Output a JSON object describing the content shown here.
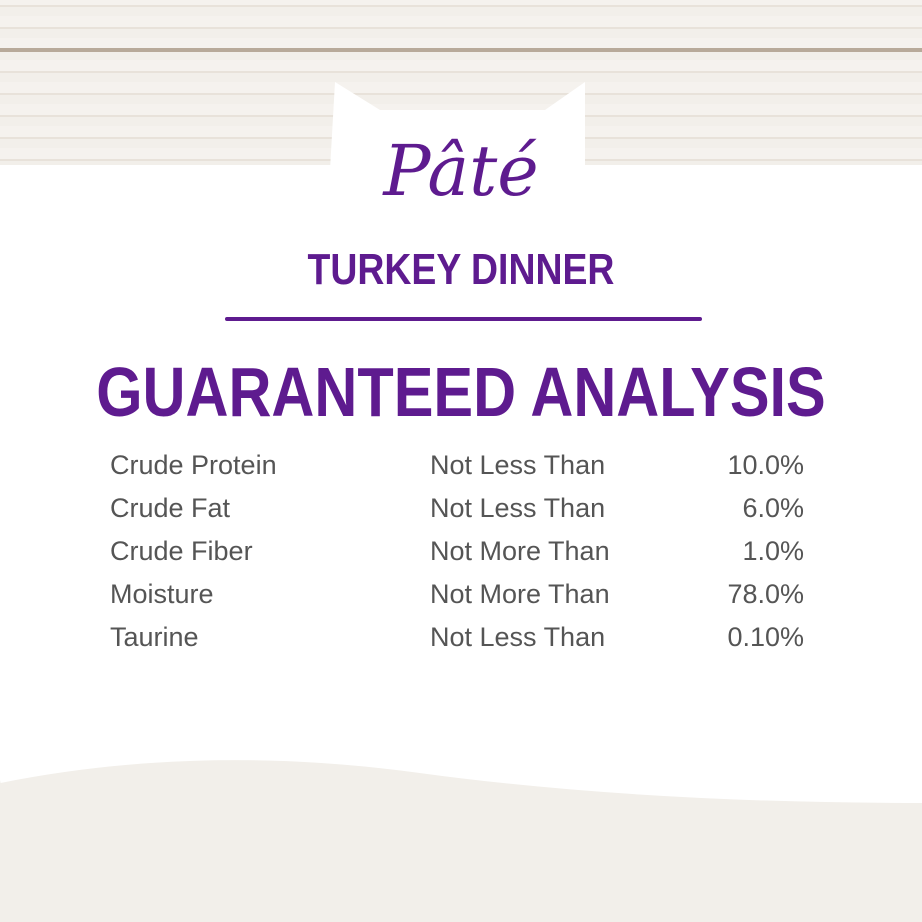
{
  "brand_title": "Pâté",
  "product": "TURKEY DINNER",
  "heading": "GUARANTEED ANALYSIS",
  "analysis": [
    {
      "nutrient": "Crude Protein",
      "qualifier": "Not Less Than",
      "value": "10.0%"
    },
    {
      "nutrient": "Crude Fat",
      "qualifier": "Not Less Than",
      "value": "6.0%"
    },
    {
      "nutrient": "Crude Fiber",
      "qualifier": "Not More Than",
      "value": "1.0%"
    },
    {
      "nutrient": "Moisture",
      "qualifier": "Not More Than",
      "value": "78.0%"
    },
    {
      "nutrient": "Taurine",
      "qualifier": "Not Less Than",
      "value": "0.10%"
    }
  ],
  "colors": {
    "accent": "#5e1b8f",
    "text": "#555555"
  }
}
